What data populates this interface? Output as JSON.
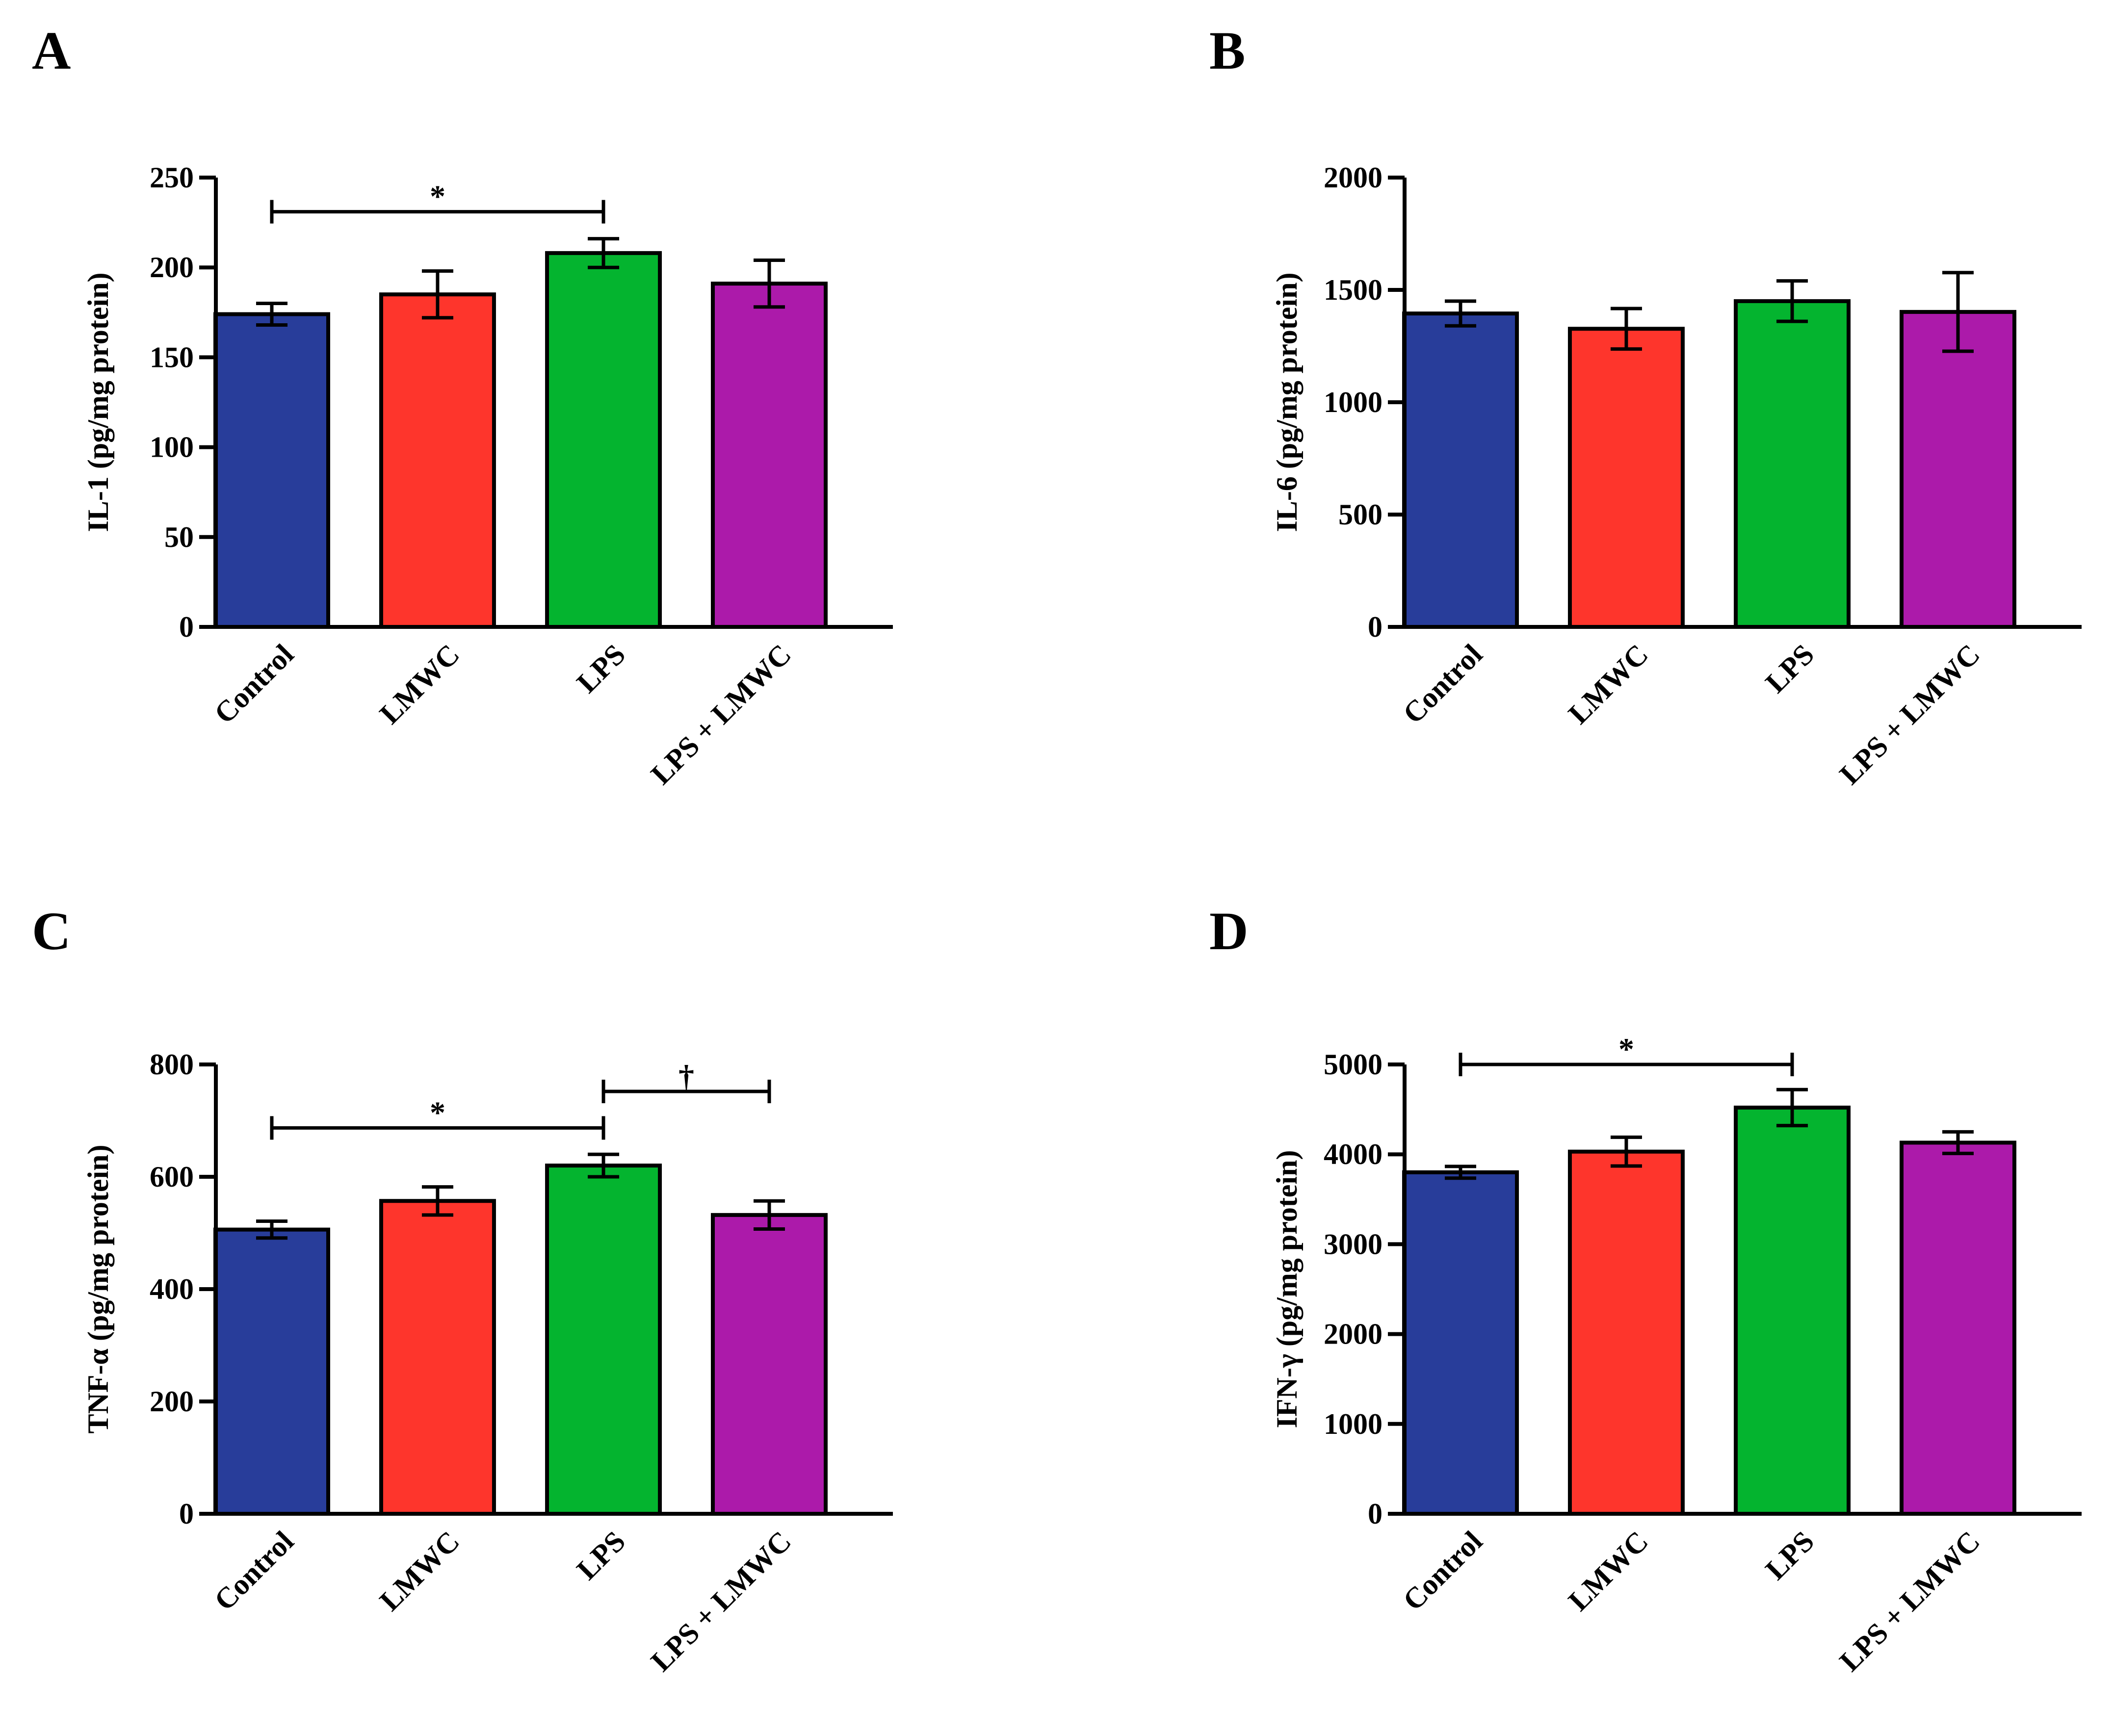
{
  "colors": {
    "bars": [
      "#283d9a",
      "#fe352c",
      "#04b42f",
      "#ac1aaa"
    ],
    "axis": "#000000"
  },
  "chart_data": [
    {
      "panel": "A",
      "type": "bar",
      "categories": [
        "Control",
        "LMWC",
        "LPS",
        "LPS + LMWC"
      ],
      "values": [
        174,
        185,
        208,
        191
      ],
      "errors": [
        6,
        13,
        8,
        13
      ],
      "ylabel": "IL-1 (pg/mg protein)",
      "ylim": [
        0,
        250
      ],
      "yticks": [
        0,
        50,
        100,
        150,
        200,
        250
      ],
      "annotations": [
        {
          "from": 0,
          "to": 2,
          "label": "*",
          "level": 231
        }
      ]
    },
    {
      "panel": "B",
      "type": "bar",
      "categories": [
        "Control",
        "LMWC",
        "LPS",
        "LPS + LMWC"
      ],
      "values": [
        1395,
        1327,
        1450,
        1402
      ],
      "errors": [
        55,
        90,
        90,
        175
      ],
      "ylabel": "IL-6 (pg/mg protein)",
      "ylim": [
        0,
        2000
      ],
      "yticks": [
        0,
        500,
        1000,
        1500,
        2000
      ],
      "annotations": []
    },
    {
      "panel": "C",
      "type": "bar",
      "categories": [
        "Control",
        "LMWC",
        "LPS",
        "LPS + LMWC"
      ],
      "values": [
        506,
        557,
        620,
        532
      ],
      "errors": [
        15,
        25,
        20,
        25
      ],
      "ylabel": "TNF-α  (pg/mg protein)",
      "ylim": [
        0,
        800
      ],
      "yticks": [
        0,
        200,
        400,
        600,
        800
      ],
      "annotations": [
        {
          "from": 0,
          "to": 2,
          "label": "*",
          "level": 687
        },
        {
          "from": 2,
          "to": 3,
          "label": "†",
          "level": 752
        }
      ]
    },
    {
      "panel": "D",
      "type": "bar",
      "categories": [
        "Control",
        "LMWC",
        "LPS",
        "LPS + LMWC"
      ],
      "values": [
        3800,
        4030,
        4520,
        4130
      ],
      "errors": [
        65,
        160,
        200,
        120
      ],
      "ylabel": "IFN-γ  (pg/mg protein)",
      "ylim": [
        0,
        5000
      ],
      "yticks": [
        0,
        1000,
        2000,
        3000,
        4000,
        5000
      ],
      "annotations": [
        {
          "from": 0,
          "to": 2,
          "label": "*",
          "level": 5000
        }
      ]
    }
  ]
}
